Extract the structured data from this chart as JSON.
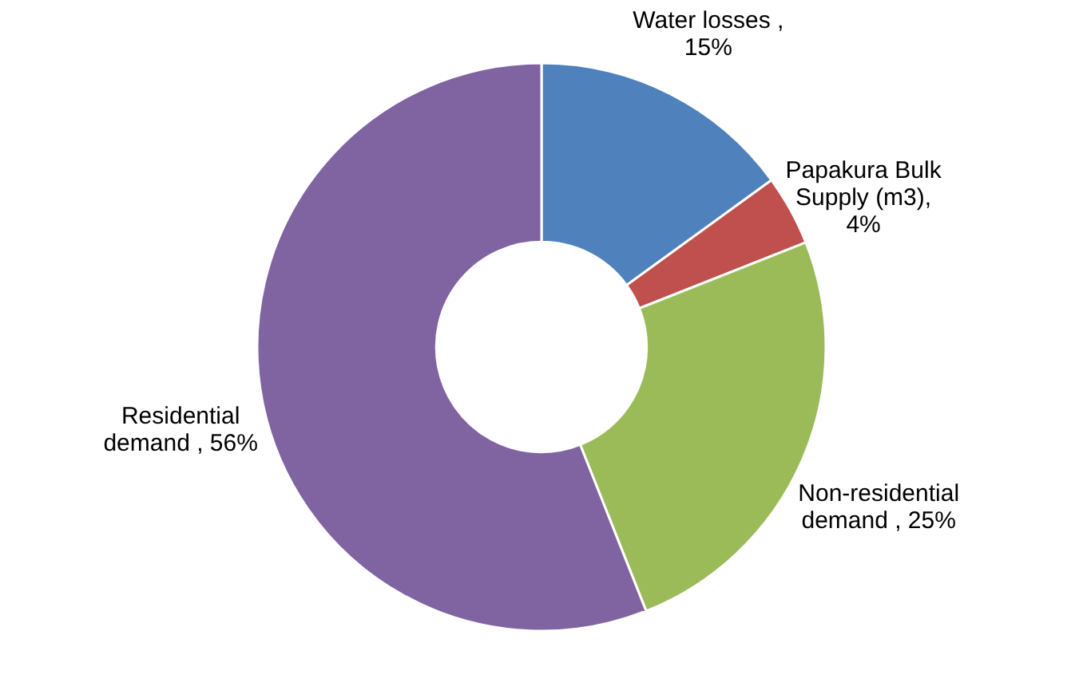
{
  "chart_data": {
    "type": "donut",
    "categories": [
      "Water losses",
      "Papakura Bulk Supply (m3)",
      "Non-residential demand",
      "Residential demand"
    ],
    "values": [
      15,
      4,
      25,
      56
    ],
    "colors": [
      "#4f81bd",
      "#c0504d",
      "#9bbb59",
      "#8064a2"
    ],
    "value_labels": [
      " , 15%",
      ", 4%",
      " , 25%",
      " , 56%"
    ]
  }
}
